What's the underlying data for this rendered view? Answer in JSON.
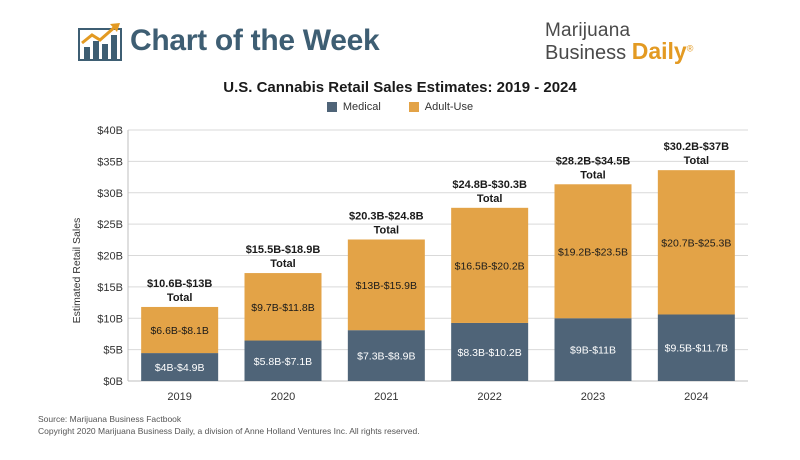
{
  "header": {
    "section_title": "Chart of the Week",
    "brand_line1": "Marijuana",
    "brand_word": "Business",
    "brand_daily": "Daily",
    "brand_mark": "®"
  },
  "footer": {
    "source": "Source: Marijuana Business Factbook",
    "copyright": "Copyright 2020 Marijuana Business Daily, a division of Anne Holland Ventures Inc. All rights reserved."
  },
  "colors": {
    "medical": "#4f6478",
    "adult_use": "#e3a347",
    "grid": "#d9d9d9",
    "axis_text": "#333333"
  },
  "chart_data": {
    "type": "bar",
    "stacked": true,
    "title": "U.S. Cannabis Retail Sales Estimates: 2019 - 2024",
    "ylabel": "Estimated Retail Sales",
    "xlabel": "",
    "ylim": [
      0,
      40
    ],
    "yticks": [
      0,
      5,
      10,
      15,
      20,
      25,
      30,
      35,
      40
    ],
    "ytick_labels": [
      "$0B",
      "$5B",
      "$10B",
      "$15B",
      "$20B",
      "$25B",
      "$30B",
      "$35B",
      "$40B"
    ],
    "grid": true,
    "legend_position": "top-center",
    "categories": [
      "2019",
      "2020",
      "2021",
      "2022",
      "2023",
      "2024"
    ],
    "series": [
      {
        "name": "Medical",
        "values": [
          4.45,
          6.45,
          8.1,
          9.25,
          10.0,
          10.6
        ],
        "labels": [
          "$4B-$4.9B",
          "$5.8B-$7.1B",
          "$7.3B-$8.9B",
          "$8.3B-$10.2B",
          "$9B-$11B",
          "$9.5B-$11.7B"
        ]
      },
      {
        "name": "Adult-Use",
        "values": [
          7.35,
          10.75,
          14.45,
          18.35,
          21.35,
          23.0
        ],
        "labels": [
          "$6.6B-$8.1B",
          "$9.7B-$11.8B",
          "$13B-$15.9B",
          "$16.5B-$20.2B",
          "$19.2B-$23.5B",
          "$20.7B-$25.3B"
        ]
      }
    ],
    "totals": [
      "$10.6B-$13B",
      "$15.5B-$18.9B",
      "$20.3B-$24.8B",
      "$24.8B-$30.3B",
      "$28.2B-$34.5B",
      "$30.2B-$37B"
    ],
    "total_word": "Total"
  }
}
